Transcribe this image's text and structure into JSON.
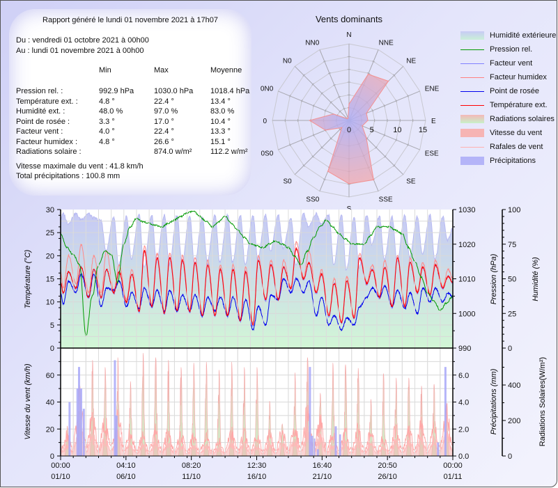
{
  "summary": {
    "title": "Rapport généré le lundi 01 novembre 2021 à 17h07",
    "from": "Du : vendredi 01 octobre 2021 à 00h00",
    "to": "Au : lundi 01 novembre 2021 à 00h00",
    "headers": [
      "Min",
      "Max",
      "Moyenne"
    ],
    "rows": [
      {
        "label": "Pression rel. :",
        "min": "992.9 hPa",
        "max": "1030.0 hPa",
        "avg": "1018.4 hPa"
      },
      {
        "label": "Température ext. :",
        "min": "4.8 °",
        "max": "22.4 °",
        "avg": "13.4 °"
      },
      {
        "label": "Humidité ext. :",
        "min": "48.0 %",
        "max": "97.0 %",
        "avg": "83.0 %"
      },
      {
        "label": "Point de rosée :",
        "min": "3.3 °",
        "max": "17.0 °",
        "avg": "10.4 °"
      },
      {
        "label": "Facteur vent :",
        "min": "4.0 °",
        "max": "22.4 °",
        "avg": "13.3 °"
      },
      {
        "label": "Facteur humidex :",
        "min": "4.8 °",
        "max": "26.6 °",
        "avg": "15.1 °"
      },
      {
        "label": "Radiations solaire :",
        "min": "",
        "max": "874.0 w/m²",
        "avg": "112.2 w/m²"
      }
    ],
    "max_wind": "Vitesse maximale du vent : 41.8 km/h",
    "total_rain": "Total précipitations : 100.8 mm"
  },
  "legend": [
    {
      "label": "Humidité extérieure",
      "kind": "area",
      "color": "#c8cbf5",
      "color2": "#c9f0d8"
    },
    {
      "label": "Pression rel.",
      "kind": "line",
      "color": "#009900"
    },
    {
      "label": "Facteur vent",
      "kind": "line",
      "color": "#8080ff"
    },
    {
      "label": "Facteur humidex",
      "kind": "line",
      "color": "#ff8080"
    },
    {
      "label": "Point de rosée",
      "kind": "line",
      "color": "#0000ee"
    },
    {
      "label": "Température ext.",
      "kind": "line",
      "color": "#ff0000"
    },
    {
      "label": "Radiations solaires",
      "kind": "area",
      "color": "#f4b8b8",
      "color2": "#c8f0c8"
    },
    {
      "label": "Vitesse du vent",
      "kind": "area",
      "color": "#f6b4b4",
      "color2": "#f6b4b4"
    },
    {
      "label": "Rafales de vent",
      "kind": "line",
      "color": "#ffb0b0"
    },
    {
      "label": "Précipitations",
      "kind": "area",
      "color": "#b4b4f8",
      "color2": "#b4b4f8"
    }
  ],
  "chart_data": [
    {
      "type": "radar",
      "title": "Vents dominants",
      "directions": [
        "N",
        "NNE",
        "NE",
        "ENE",
        "E",
        "ESE",
        "SE",
        "SSE",
        "S",
        "SS0",
        "S0",
        "0S0",
        "0",
        "0N0",
        "N0",
        "NN0"
      ],
      "values": [
        3.2,
        9.8,
        10.9,
        3.7,
        3.7,
        2.8,
        4.8,
        12.6,
        12.4,
        10.8,
        2.0,
        5.0,
        7.7,
        3.3,
        0.5,
        0.5
      ],
      "rmax": 15,
      "ticks": [
        "0",
        "5",
        "10",
        "15"
      ],
      "fill_colors": [
        "#b0b0f5",
        "#f5a8a8"
      ]
    },
    {
      "type": "line",
      "x_ticks": [
        [
          "00:00",
          "01/10"
        ],
        [
          "04:10",
          "06/10"
        ],
        [
          "08:20",
          "11/10"
        ],
        [
          "12:30",
          "16/10"
        ],
        [
          "16:40",
          "21/10"
        ],
        [
          "20:50",
          "26/10"
        ],
        [
          "00:00",
          "01/11"
        ]
      ],
      "xlim": [
        "01/10 00:00",
        "01/11 00:00"
      ],
      "axes": {
        "left": {
          "label": "Température (°C)",
          "lim": [
            0,
            30
          ],
          "ticks": [
            "0",
            "5",
            "10",
            "15",
            "20",
            "25",
            "30"
          ]
        },
        "right1": {
          "label": "Pression (hPa)",
          "lim": [
            990,
            1030
          ],
          "ticks": [
            "990",
            "1000",
            "1010",
            "1020",
            "1030"
          ]
        },
        "right2": {
          "label": "Humidité (%)",
          "lim": [
            0,
            100
          ],
          "ticks": [
            "0",
            "25",
            "50",
            "75",
            "100"
          ]
        }
      },
      "grid": true,
      "dates": [
        "01/10",
        "02/10",
        "03/10",
        "04/10",
        "05/10",
        "06/10",
        "07/10",
        "08/10",
        "09/10",
        "10/10",
        "11/10",
        "12/10",
        "13/10",
        "14/10",
        "15/10",
        "16/10",
        "17/10",
        "18/10",
        "19/10",
        "20/10",
        "21/10",
        "22/10",
        "23/10",
        "24/10",
        "25/10",
        "26/10",
        "27/10",
        "28/10",
        "29/10",
        "30/10",
        "31/10"
      ],
      "temperature_min": [
        12,
        13,
        11,
        11,
        12,
        10,
        8,
        9,
        7.5,
        8,
        8,
        7,
        7,
        7,
        6,
        5,
        10.5,
        10.5,
        13,
        15,
        12,
        7,
        5.5,
        6.5,
        14,
        11,
        9,
        9,
        12,
        11.5,
        13
      ],
      "temperature_max": [
        16.5,
        17.5,
        17,
        17,
        16.5,
        16,
        21,
        19.5,
        19.5,
        19,
        18.5,
        18,
        17,
        17,
        16.5,
        19,
        18,
        17.5,
        21.5,
        18.5,
        16,
        14,
        14.5,
        19.5,
        17,
        17.5,
        19.5,
        18.5,
        17.5,
        18,
        15.5
      ],
      "dewpoint_min": [
        9.5,
        12,
        11,
        9,
        12.5,
        9,
        8.5,
        9,
        8,
        8,
        8,
        7,
        8,
        7,
        6,
        4,
        5,
        10.5,
        12,
        12,
        7,
        5,
        4,
        5,
        11,
        11,
        9,
        8.5,
        7.5,
        10,
        10
      ],
      "dewpoint_max": [
        14.5,
        16,
        16,
        13,
        14.5,
        12,
        13,
        12.5,
        12.5,
        11.5,
        11.5,
        11,
        11,
        11,
        10.5,
        9,
        11.5,
        15,
        15,
        14.5,
        11,
        7,
        6.5,
        9,
        13,
        13.5,
        12.5,
        12,
        13,
        13,
        12
      ],
      "humidex_min": [
        13,
        14,
        12,
        12,
        12.5,
        10.5,
        8.3,
        9.3,
        7.8,
        8.3,
        8.3,
        7.3,
        7.3,
        7.3,
        6.3,
        5.3,
        10.8,
        10.8,
        13.3,
        15.3,
        12.3,
        7.3,
        5.8,
        6.8,
        14.3,
        11.3,
        9.3,
        9.3,
        12.3,
        11.8,
        13.3
      ],
      "humidex_max": [
        20,
        22.5,
        20,
        21,
        18,
        17,
        22,
        20.5,
        20.5,
        20,
        19.5,
        19,
        18,
        18,
        17.5,
        20,
        19,
        19,
        23,
        21,
        17,
        15,
        15.5,
        20.5,
        18,
        19,
        20,
        19.5,
        18.5,
        19,
        17
      ],
      "windchill_min": [
        11.8,
        12.8,
        10.8,
        10.8,
        11.8,
        9.8,
        7.8,
        8.8,
        7.3,
        7.8,
        7.8,
        6.8,
        6.8,
        6.8,
        5.8,
        4.8,
        10.3,
        10.3,
        12.8,
        14.8,
        11.8,
        6.8,
        5.3,
        6.3,
        13.8,
        10.8,
        8.8,
        8.8,
        11.8,
        11.3,
        12.8
      ],
      "windchill_max": [
        16.5,
        17.5,
        17,
        17,
        16.5,
        16,
        21,
        19.5,
        19.5,
        19,
        18.5,
        18,
        17,
        17,
        16.5,
        19,
        18,
        17.5,
        21.5,
        18.5,
        16,
        14,
        14.5,
        19.5,
        17,
        17.5,
        19.5,
        18.5,
        17.5,
        18,
        15.5
      ],
      "humidity_min": [
        90,
        93,
        94,
        70,
        60,
        64,
        58,
        62,
        60,
        61,
        60,
        63,
        62,
        62,
        60,
        64,
        70,
        72,
        60,
        88,
        90,
        60,
        56,
        58,
        75,
        64,
        62,
        66,
        68,
        64,
        78
      ],
      "humidity_max": [
        97,
        97,
        97,
        92,
        95,
        95,
        96,
        96,
        96,
        96,
        96,
        95,
        96,
        96,
        96,
        96,
        96,
        96,
        94,
        97,
        97,
        96,
        96,
        95,
        96,
        95,
        95,
        96,
        95,
        96,
        95
      ],
      "pressure_12h": [
        1023,
        1019,
        1017,
        1014,
        993.5,
        1005,
        1014,
        1018,
        1017,
        1009,
        1020,
        1025,
        1027.5,
        1026.5,
        1026,
        1025.5,
        1025,
        1026,
        1027,
        1028,
        1029,
        1029.5,
        1028,
        1026.5,
        1025,
        1026.5,
        1028,
        1026,
        1024,
        1022,
        1020,
        1019.5,
        1019,
        1020,
        1021,
        1020,
        1019,
        1016.5,
        1014,
        1018,
        1022,
        1025,
        1027,
        1025,
        1023,
        1021.5,
        1020,
        1020,
        1020,
        1022.5,
        1025,
        1025,
        1025,
        1024,
        1023,
        1019,
        1015,
        1010.5,
        1006,
        1003.5,
        1001,
        1003,
        1005
      ]
    },
    {
      "type": "bar+area",
      "axes": {
        "left": {
          "label": "Vitesse du vent (km/h)",
          "lim": [
            0,
            80
          ],
          "ticks": [
            "0",
            "20",
            "40",
            "60"
          ]
        },
        "right1": {
          "label": "Précipitations (mm)",
          "lim": [
            0,
            8
          ],
          "ticks": [
            "0.0",
            "2.0",
            "4.0",
            "6.0"
          ]
        },
        "right2": {
          "label": "Radiations Solaires(W/m²)",
          "lim": [
            0,
            608
          ],
          "ticks": [
            "0",
            "200",
            "400"
          ]
        }
      },
      "dates": [
        "01/10",
        "02/10",
        "03/10",
        "04/10",
        "05/10",
        "06/10",
        "07/10",
        "08/10",
        "09/10",
        "10/10",
        "11/10",
        "12/10",
        "13/10",
        "14/10",
        "15/10",
        "16/10",
        "17/10",
        "18/10",
        "19/10",
        "20/10",
        "21/10",
        "22/10",
        "23/10",
        "24/10",
        "25/10",
        "26/10",
        "27/10",
        "28/10",
        "29/10",
        "30/10",
        "31/10"
      ],
      "solar_peak": [
        170,
        400,
        540,
        500,
        555,
        420,
        580,
        555,
        540,
        500,
        525,
        530,
        485,
        530,
        500,
        500,
        310,
        180,
        470,
        555,
        355,
        525,
        515,
        495,
        320,
        465,
        440,
        440,
        395,
        405,
        295
      ],
      "wind_peak": [
        13,
        31,
        21,
        19,
        24,
        13,
        12,
        15,
        13,
        12,
        11,
        12,
        9,
        13,
        13,
        12,
        12,
        14,
        16,
        24,
        21,
        12,
        13,
        15,
        13,
        11,
        15,
        16,
        18,
        16,
        24
      ],
      "gust_peak": [
        22,
        52,
        35,
        32,
        40,
        22,
        20,
        25,
        22,
        20,
        18,
        20,
        15,
        22,
        22,
        20,
        20,
        24,
        26,
        40,
        35,
        20,
        22,
        25,
        22,
        18,
        25,
        26,
        30,
        27,
        40
      ],
      "precipitation": [
        [
          "01/10 17:00",
          4.0
        ],
        [
          "02/10 08:00",
          5.0
        ],
        [
          "02/10 11:00",
          6.6
        ],
        [
          "02/10 15:00",
          5.0
        ],
        [
          "02/10 20:00",
          3.5
        ],
        [
          "05/10 07:00",
          7.1
        ],
        [
          "05/10 10:00",
          3.0
        ],
        [
          "20/10 17:00",
          6.6
        ],
        [
          "20/10 21:00",
          1.5
        ],
        [
          "21/10 01:00",
          1.3
        ],
        [
          "21/10 08:00",
          0.5
        ],
        [
          "22/10 18:00",
          2.2
        ],
        [
          "23/10 02:00",
          1.6
        ],
        [
          "30/10 20:00",
          1.0
        ],
        [
          "31/10 10:00",
          6.6
        ]
      ]
    }
  ]
}
